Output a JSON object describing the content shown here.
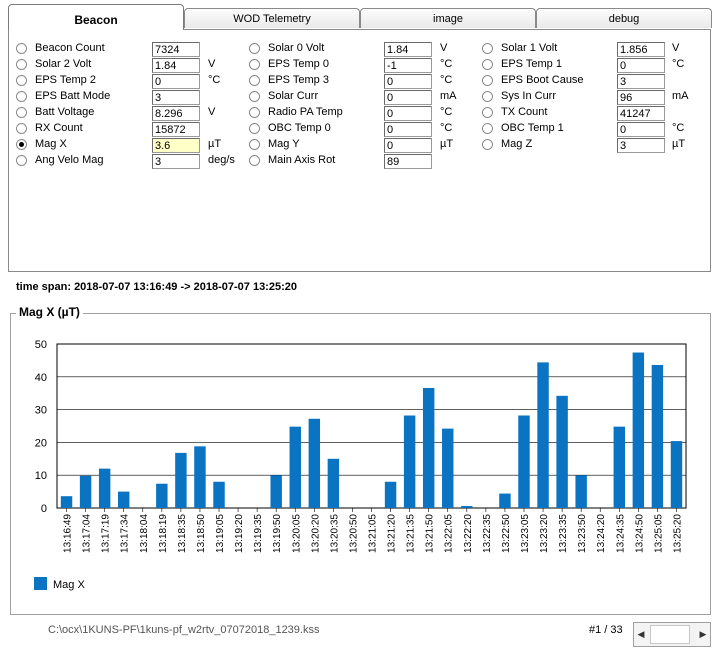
{
  "tabs": [
    "Beacon",
    "WOD Telemetry",
    "image",
    "debug"
  ],
  "active_tab": "Beacon",
  "columns": [
    [
      {
        "label": "Beacon Count",
        "value": "7324",
        "unit": ""
      },
      {
        "label": "Solar 2 Volt",
        "value": "1.84",
        "unit": "V"
      },
      {
        "label": "EPS Temp 2",
        "value": "0",
        "unit": "°C"
      },
      {
        "label": "EPS Batt Mode",
        "value": "3",
        "unit": ""
      },
      {
        "label": "Batt Voltage",
        "value": "8.296",
        "unit": "V"
      },
      {
        "label": "RX Count",
        "value": "15872",
        "unit": ""
      },
      {
        "label": "Mag X",
        "value": "3.6",
        "unit": "µT",
        "selected": true
      },
      {
        "label": "Ang Velo Mag",
        "value": "3",
        "unit": "deg/s"
      }
    ],
    [
      {
        "label": "Solar 0 Volt",
        "value": "1.84",
        "unit": "V"
      },
      {
        "label": "EPS Temp 0",
        "value": "-1",
        "unit": "°C"
      },
      {
        "label": "EPS Temp 3",
        "value": "0",
        "unit": "°C"
      },
      {
        "label": "Solar Curr",
        "value": "0",
        "unit": "mA"
      },
      {
        "label": "Radio PA Temp",
        "value": "0",
        "unit": "°C"
      },
      {
        "label": "OBC Temp 0",
        "value": "0",
        "unit": "°C"
      },
      {
        "label": "Mag Y",
        "value": "0",
        "unit": "µT"
      },
      {
        "label": "Main Axis Rot",
        "value": "89",
        "unit": ""
      }
    ],
    [
      {
        "label": "Solar 1 Volt",
        "value": "1.856",
        "unit": "V"
      },
      {
        "label": "EPS Temp 1",
        "value": "0",
        "unit": "°C"
      },
      {
        "label": "EPS Boot Cause",
        "value": "3",
        "unit": ""
      },
      {
        "label": "Sys In Curr",
        "value": "96",
        "unit": "mA"
      },
      {
        "label": "TX Count",
        "value": "41247",
        "unit": ""
      },
      {
        "label": "OBC Temp 1",
        "value": "0",
        "unit": "°C"
      },
      {
        "label": "Mag Z",
        "value": "3",
        "unit": "µT"
      }
    ]
  ],
  "timespan": "time span:  2018-07-07 13:16:49 -> 2018-07-07 13:25:20",
  "chart_title": "Mag X (µT)",
  "chart_data": {
    "type": "bar",
    "title": "Mag X (µT)",
    "categories": [
      "13:16:49",
      "13:17:04",
      "13:17:19",
      "13:17:34",
      "13:18:04",
      "13:18:19",
      "13:18:35",
      "13:18:50",
      "13:19:05",
      "13:19:20",
      "13:19:35",
      "13:19:50",
      "13:20:05",
      "13:20:20",
      "13:20:35",
      "13:20:50",
      "13:21:05",
      "13:21:20",
      "13:21:35",
      "13:21:50",
      "13:22:05",
      "13:22:20",
      "13:22:35",
      "13:22:50",
      "13:23:05",
      "13:23:20",
      "13:23:35",
      "13:23:50",
      "13:24:20",
      "13:24:35",
      "13:24:50",
      "13:25:05",
      "13:25:20"
    ],
    "series": [
      {
        "name": "Mag X",
        "values": [
          3.6,
          9.8,
          12,
          5,
          0,
          7.4,
          16.8,
          18.8,
          8,
          0,
          0,
          10,
          24.8,
          27.2,
          15,
          0,
          0,
          8,
          28.2,
          36.6,
          24.2,
          0.6,
          0,
          4.4,
          28.2,
          44.4,
          34.2,
          10,
          0,
          24.8,
          47.4,
          43.6,
          20.4
        ]
      }
    ],
    "ylim": [
      0,
      50
    ],
    "yticks": [
      0,
      10,
      20,
      30,
      40,
      50
    ],
    "color": "#0a74c2",
    "grid": true,
    "legend": "bottom-left"
  },
  "file_path": "C:\\ocx\\1KUNS-PF\\1kuns-pf_w2rtv_07072018_1239.kss",
  "pager": "#1 / 33"
}
